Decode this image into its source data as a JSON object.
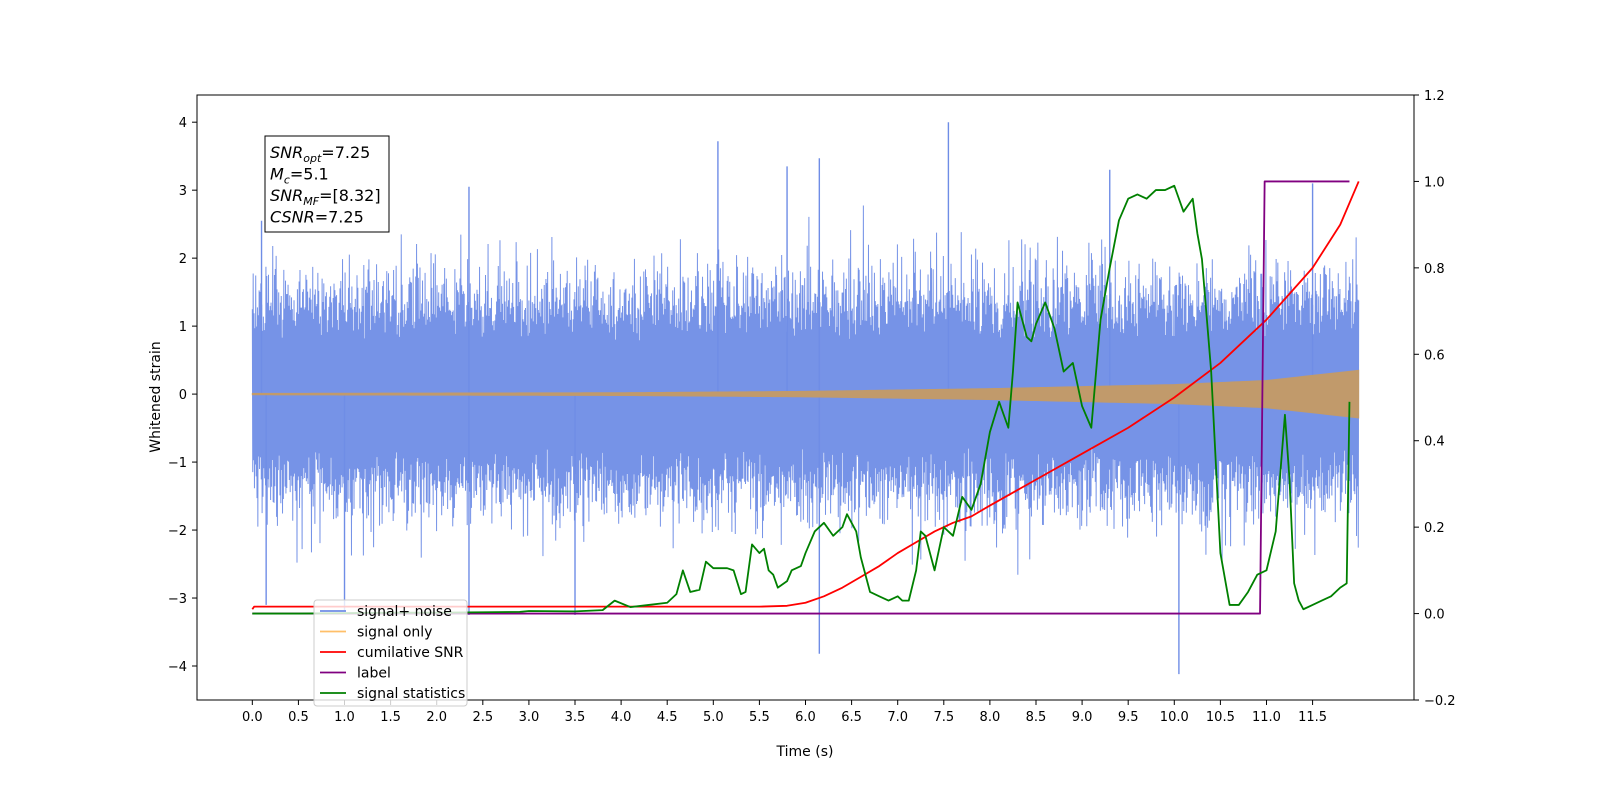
{
  "chart_data": {
    "type": "line",
    "title": "",
    "xlabel": "Time (s)",
    "ylabel": "Whitened strain",
    "xlim": [
      -0.6,
      12.6
    ],
    "ylim_left": [
      -4.5,
      4.4
    ],
    "ylim_right": [
      -0.2,
      1.2
    ],
    "x_ticks": [
      0.0,
      0.5,
      1.0,
      1.5,
      2.0,
      2.5,
      3.0,
      3.5,
      4.0,
      4.5,
      5.0,
      5.5,
      6.0,
      6.5,
      7.0,
      7.5,
      8.0,
      8.5,
      9.0,
      9.5,
      10.0,
      10.5,
      11.0,
      11.5
    ],
    "x_tick_labels": [
      "0.0",
      "0.5",
      "1.0",
      "1.5",
      "2.0",
      "2.5",
      "3.0",
      "3.5",
      "4.0",
      "4.5",
      "5.0",
      "5.5",
      "6.0",
      "6.5",
      "7.0",
      "7.5",
      "8.0",
      "8.5",
      "9.0",
      "9.5",
      "10.0",
      "10.5",
      "11.0",
      "11.5"
    ],
    "y_left_ticks": [
      -4,
      -3,
      -2,
      -1,
      0,
      1,
      2,
      3,
      4
    ],
    "y_left_tick_labels": [
      "−4",
      "−3",
      "−2",
      "−1",
      "0",
      "1",
      "2",
      "3",
      "4"
    ],
    "y_right_ticks": [
      -0.2,
      0.0,
      0.2,
      0.4,
      0.6,
      0.8,
      1.0,
      1.2
    ],
    "y_right_tick_labels": [
      "−0.2",
      "0.0",
      "0.2",
      "0.4",
      "0.6",
      "0.8",
      "1.0",
      "1.2"
    ],
    "grid": false,
    "legend_position": "bottom-left",
    "annotation_lines": [
      {
        "base": "SNR",
        "sub": "opt",
        "rest": "=7.25"
      },
      {
        "base": "M",
        "sub": "c",
        "rest": "=5.1"
      },
      {
        "base": "SNR",
        "sub": "MF",
        "rest": "=[8.32]"
      },
      {
        "base": "CSNR",
        "sub": "",
        "rest": "=7.25"
      }
    ],
    "series": [
      {
        "name": "signal+ noise",
        "color": "#6f8de6",
        "axis": "left",
        "x_range": [
          0.0,
          12.0
        ],
        "typical_amplitude": 2.0,
        "spikes": [
          {
            "x": 0.1,
            "y": 2.55
          },
          {
            "x": 0.15,
            "y": -3.1
          },
          {
            "x": 1.0,
            "y": -3.2
          },
          {
            "x": 2.35,
            "y": 3.05
          },
          {
            "x": 2.35,
            "y": -3.25
          },
          {
            "x": 3.5,
            "y": -3.25
          },
          {
            "x": 5.05,
            "y": 3.72
          },
          {
            "x": 5.8,
            "y": 3.35
          },
          {
            "x": 6.15,
            "y": 3.47
          },
          {
            "x": 6.15,
            "y": -3.82
          },
          {
            "x": 7.55,
            "y": 4.0
          },
          {
            "x": 9.3,
            "y": 3.3
          },
          {
            "x": 10.05,
            "y": -4.12
          },
          {
            "x": 11.5,
            "y": 3.1
          }
        ]
      },
      {
        "name": "signal only",
        "color": "#c19a6b",
        "axis": "left",
        "x_range": [
          0.0,
          12.0
        ],
        "envelope": [
          [
            0.0,
            0.01
          ],
          [
            4.0,
            0.02
          ],
          [
            6.0,
            0.04
          ],
          [
            8.0,
            0.08
          ],
          [
            10.0,
            0.14
          ],
          [
            11.0,
            0.2
          ],
          [
            12.0,
            0.35
          ]
        ]
      },
      {
        "name": "cumilative SNR",
        "color": "#ff0000",
        "axis": "right",
        "x": [
          0.0,
          0.02,
          5.5,
          5.8,
          6.0,
          6.2,
          6.4,
          6.6,
          6.8,
          7.0,
          7.2,
          7.4,
          7.6,
          7.8,
          8.0,
          8.5,
          9.0,
          9.5,
          10.0,
          10.5,
          11.0,
          11.5,
          11.8,
          12.0
        ],
        "y": [
          0.01,
          0.016,
          0.016,
          0.018,
          0.025,
          0.04,
          0.06,
          0.085,
          0.11,
          0.14,
          0.165,
          0.19,
          0.21,
          0.225,
          0.25,
          0.31,
          0.37,
          0.43,
          0.5,
          0.58,
          0.68,
          0.8,
          0.9,
          1.0
        ]
      },
      {
        "name": "label",
        "color": "#800080",
        "axis": "right",
        "x": [
          0.0,
          10.93,
          10.98,
          11.9
        ],
        "y": [
          0.0,
          0.0,
          1.0,
          1.0
        ]
      },
      {
        "name": "signal statistics",
        "color": "#008000",
        "axis": "right",
        "x": [
          0.0,
          0.5,
          1.0,
          1.5,
          2.0,
          2.5,
          2.9,
          3.0,
          3.5,
          3.8,
          3.93,
          4.1,
          4.3,
          4.5,
          4.6,
          4.67,
          4.75,
          4.85,
          4.92,
          5.0,
          5.15,
          5.22,
          5.3,
          5.35,
          5.42,
          5.5,
          5.55,
          5.6,
          5.65,
          5.7,
          5.8,
          5.85,
          5.95,
          6.0,
          6.1,
          6.2,
          6.3,
          6.4,
          6.45,
          6.5,
          6.55,
          6.6,
          6.7,
          6.8,
          6.9,
          7.0,
          7.05,
          7.12,
          7.2,
          7.25,
          7.3,
          7.4,
          7.5,
          7.6,
          7.7,
          7.8,
          7.9,
          8.0,
          8.1,
          8.2,
          8.25,
          8.3,
          8.4,
          8.45,
          8.5,
          8.6,
          8.7,
          8.8,
          8.9,
          9.0,
          9.1,
          9.2,
          9.3,
          9.4,
          9.5,
          9.6,
          9.7,
          9.8,
          9.9,
          10.0,
          10.1,
          10.2,
          10.25,
          10.3,
          10.4,
          10.5,
          10.6,
          10.7,
          10.8,
          10.9,
          11.0,
          11.1,
          11.2,
          11.25,
          11.3,
          11.35,
          11.4,
          11.5,
          11.6,
          11.7,
          11.8,
          11.87,
          11.9
        ],
        "y": [
          0.0,
          0.0,
          0.001,
          0.002,
          0.002,
          0.003,
          0.004,
          0.006,
          0.005,
          0.008,
          0.03,
          0.015,
          0.02,
          0.025,
          0.045,
          0.1,
          0.05,
          0.055,
          0.12,
          0.105,
          0.105,
          0.1,
          0.045,
          0.05,
          0.16,
          0.14,
          0.15,
          0.1,
          0.09,
          0.06,
          0.075,
          0.1,
          0.11,
          0.14,
          0.19,
          0.21,
          0.18,
          0.2,
          0.23,
          0.21,
          0.19,
          0.13,
          0.05,
          0.04,
          0.03,
          0.04,
          0.03,
          0.03,
          0.1,
          0.19,
          0.18,
          0.1,
          0.2,
          0.18,
          0.27,
          0.24,
          0.3,
          0.42,
          0.49,
          0.43,
          0.56,
          0.72,
          0.64,
          0.63,
          0.67,
          0.72,
          0.66,
          0.56,
          0.58,
          0.48,
          0.43,
          0.68,
          0.8,
          0.91,
          0.96,
          0.97,
          0.96,
          0.98,
          0.98,
          0.99,
          0.93,
          0.96,
          0.88,
          0.82,
          0.56,
          0.14,
          0.02,
          0.02,
          0.05,
          0.09,
          0.1,
          0.19,
          0.46,
          0.31,
          0.07,
          0.03,
          0.01,
          0.02,
          0.03,
          0.04,
          0.06,
          0.07,
          0.49
        ]
      }
    ],
    "legend_entries": [
      {
        "name": "signal+ noise",
        "color": "#6f8de6"
      },
      {
        "name": "signal only",
        "color": "#ffbf69"
      },
      {
        "name": "cumilative SNR",
        "color": "#ff0000"
      },
      {
        "name": "label",
        "color": "#800080"
      },
      {
        "name": "signal statistics",
        "color": "#008000"
      }
    ]
  }
}
